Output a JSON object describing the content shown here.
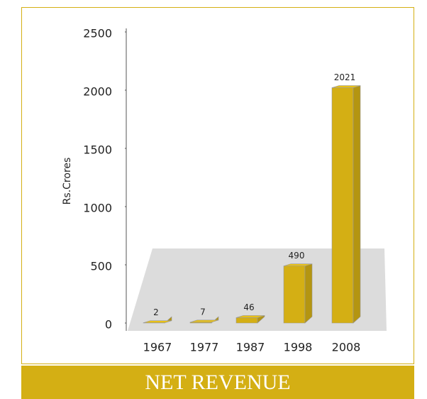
{
  "chart_data": {
    "type": "bar",
    "title": "NET REVENUE",
    "y_label": "Rs.Crores",
    "categories": [
      "1967",
      "1977",
      "1987",
      "1998",
      "2008"
    ],
    "values": [
      2,
      7,
      46,
      490,
      2021
    ],
    "color": "#d4af14",
    "ylim": [
      0,
      2500
    ],
    "yticks": [
      0,
      500,
      1000,
      1500,
      2000,
      2500
    ]
  }
}
